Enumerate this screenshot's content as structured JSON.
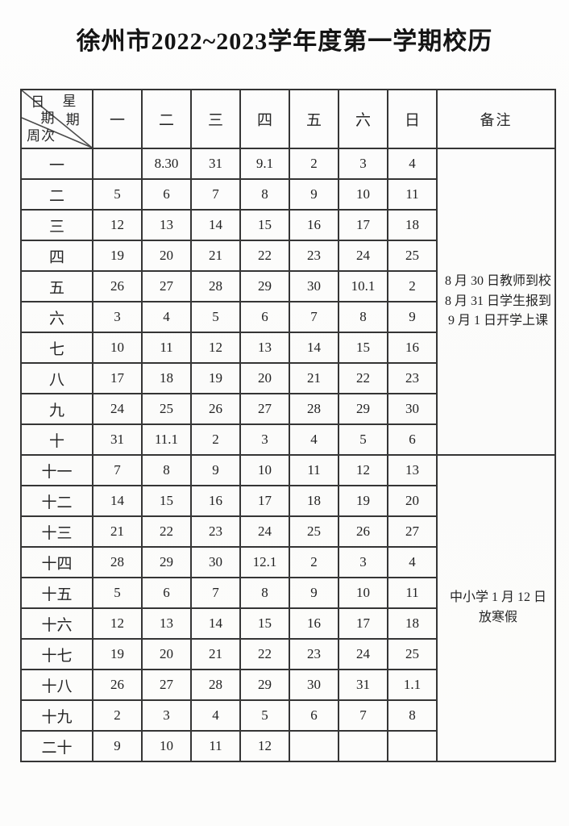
{
  "title": "徐州市2022~2023学年度第一学期校历",
  "corner": {
    "chars": [
      "日",
      "期",
      "星",
      "期"
    ],
    "week_label": "周次"
  },
  "header": {
    "days": [
      "一",
      "二",
      "三",
      "四",
      "五",
      "六",
      "日"
    ],
    "remarks": "备注"
  },
  "rows": [
    {
      "week": "一",
      "days": [
        "",
        "8.30",
        "31",
        "9.1",
        "2",
        "3",
        "4"
      ]
    },
    {
      "week": "二",
      "days": [
        "5",
        "6",
        "7",
        "8",
        "9",
        "10",
        "11"
      ]
    },
    {
      "week": "三",
      "days": [
        "12",
        "13",
        "14",
        "15",
        "16",
        "17",
        "18"
      ]
    },
    {
      "week": "四",
      "days": [
        "19",
        "20",
        "21",
        "22",
        "23",
        "24",
        "25"
      ]
    },
    {
      "week": "五",
      "days": [
        "26",
        "27",
        "28",
        "29",
        "30",
        "10.1",
        "2"
      ]
    },
    {
      "week": "六",
      "days": [
        "3",
        "4",
        "5",
        "6",
        "7",
        "8",
        "9"
      ]
    },
    {
      "week": "七",
      "days": [
        "10",
        "11",
        "12",
        "13",
        "14",
        "15",
        "16"
      ]
    },
    {
      "week": "八",
      "days": [
        "17",
        "18",
        "19",
        "20",
        "21",
        "22",
        "23"
      ]
    },
    {
      "week": "九",
      "days": [
        "24",
        "25",
        "26",
        "27",
        "28",
        "29",
        "30"
      ]
    },
    {
      "week": "十",
      "days": [
        "31",
        "11.1",
        "2",
        "3",
        "4",
        "5",
        "6"
      ]
    },
    {
      "week": "十一",
      "days": [
        "7",
        "8",
        "9",
        "10",
        "11",
        "12",
        "13"
      ]
    },
    {
      "week": "十二",
      "days": [
        "14",
        "15",
        "16",
        "17",
        "18",
        "19",
        "20"
      ]
    },
    {
      "week": "十三",
      "days": [
        "21",
        "22",
        "23",
        "24",
        "25",
        "26",
        "27"
      ]
    },
    {
      "week": "十四",
      "days": [
        "28",
        "29",
        "30",
        "12.1",
        "2",
        "3",
        "4"
      ]
    },
    {
      "week": "十五",
      "days": [
        "5",
        "6",
        "7",
        "8",
        "9",
        "10",
        "11"
      ]
    },
    {
      "week": "十六",
      "days": [
        "12",
        "13",
        "14",
        "15",
        "16",
        "17",
        "18"
      ]
    },
    {
      "week": "十七",
      "days": [
        "19",
        "20",
        "21",
        "22",
        "23",
        "24",
        "25"
      ]
    },
    {
      "week": "十八",
      "days": [
        "26",
        "27",
        "28",
        "29",
        "30",
        "31",
        "1.1"
      ]
    },
    {
      "week": "十九",
      "days": [
        "2",
        "3",
        "4",
        "5",
        "6",
        "7",
        "8"
      ]
    },
    {
      "week": "二十",
      "days": [
        "9",
        "10",
        "11",
        "12",
        "",
        "",
        ""
      ]
    }
  ],
  "remarks": [
    {
      "row_span": 10,
      "lines": [
        "8 月 30 日教师到校",
        "8 月 31 日学生报到",
        "9 月 1 日开学上课"
      ]
    },
    {
      "row_span": 10,
      "lines": [
        "中小学 1 月 12 日",
        "放寒假"
      ]
    }
  ]
}
